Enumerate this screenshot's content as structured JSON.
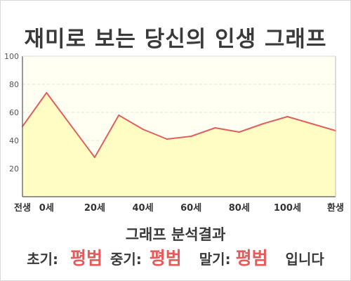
{
  "title": "재미로 보는 당신의 인생 그래프",
  "analysis": {
    "heading": "그래프 분석결과",
    "early_label": "초기:",
    "early_value": "평범",
    "middle_label": "중기:",
    "middle_value": "평범",
    "late_label": "말기:",
    "late_value": "평범",
    "suffix": "입니다"
  },
  "colors": {
    "line": "#e06060",
    "fill": "#fffcc4",
    "accent": "#e85a5a"
  },
  "chart_data": {
    "type": "area",
    "title": "재미로 보는 당신의 인생 그래프",
    "xlabel": "",
    "ylabel": "",
    "ylim": [
      0,
      100
    ],
    "yticks": [
      20,
      40,
      60,
      80,
      100
    ],
    "xlim": [
      -10,
      120
    ],
    "xticks": [
      {
        "value": -10,
        "label": "전생"
      },
      {
        "value": 0,
        "label": "0세"
      },
      {
        "value": 20,
        "label": "20세"
      },
      {
        "value": 40,
        "label": "40세"
      },
      {
        "value": 60,
        "label": "60세"
      },
      {
        "value": 80,
        "label": "80세"
      },
      {
        "value": 100,
        "label": "100세"
      },
      {
        "value": 120,
        "label": "환생"
      }
    ],
    "grid": true,
    "x": [
      -10,
      0,
      20,
      30,
      40,
      50,
      60,
      70,
      80,
      90,
      100,
      110,
      120
    ],
    "values": [
      50,
      74,
      28,
      58,
      48,
      41,
      43,
      49,
      46,
      52,
      57,
      52,
      47
    ]
  }
}
